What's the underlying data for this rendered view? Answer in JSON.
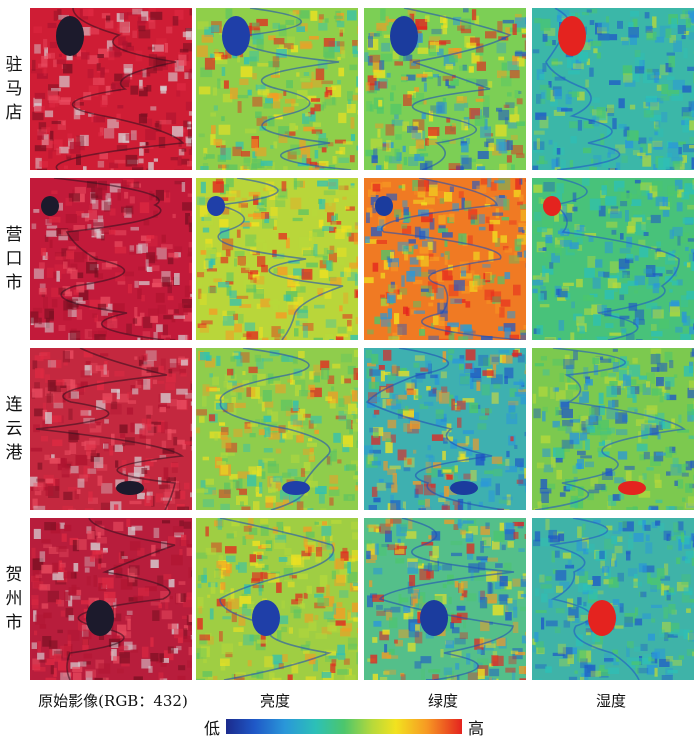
{
  "row_labels": [
    {
      "chars": [
        "驻",
        "马",
        "店"
      ]
    },
    {
      "chars": [
        "营",
        "口",
        "市"
      ]
    },
    {
      "chars": [
        "连",
        "云",
        "港"
      ]
    },
    {
      "chars": [
        "贺",
        "州",
        "市"
      ]
    }
  ],
  "column_labels": [
    "原始影像(RGB：432)",
    "亮度",
    "绿度",
    "湿度"
  ],
  "legend": {
    "low": "低",
    "high": "高"
  },
  "colors": {
    "false_color_red": "#cf1d35",
    "low": "#1b2a8c",
    "high": "#e4231f"
  }
}
